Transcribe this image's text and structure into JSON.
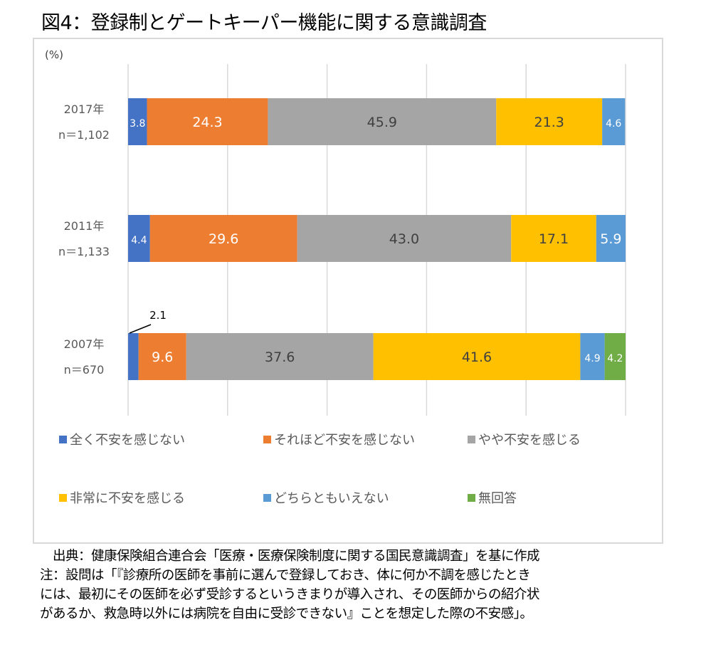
{
  "title": "図4：登録制とゲートキーパー機能に関する意識調査",
  "chart_data": {
    "type": "bar",
    "orientation": "horizontal",
    "stacked": true,
    "unit_label": "(%)",
    "xlim": [
      0,
      100
    ],
    "x_gridlines": [
      0,
      20,
      40,
      60,
      80,
      100
    ],
    "grid": true,
    "categories": [
      {
        "year": "2017年",
        "n": "n＝1,102"
      },
      {
        "year": "2011年",
        "n": "n＝1,133"
      },
      {
        "year": "2007年",
        "n": "n＝670"
      }
    ],
    "series": [
      {
        "name": "全く不安を感じない",
        "color": "#4472c4",
        "label_color": "#ffffff",
        "values": [
          3.8,
          4.4,
          2.1
        ]
      },
      {
        "name": "それほど不安を感じない",
        "color": "#ed7d31",
        "label_color": "#ffffff",
        "values": [
          24.3,
          29.6,
          9.6
        ]
      },
      {
        "name": "やや不安を感じる",
        "color": "#a5a5a5",
        "label_color": "#404040",
        "values": [
          45.9,
          43.0,
          37.6
        ]
      },
      {
        "name": "非常に不安を感じる",
        "color": "#ffc000",
        "label_color": "#404040",
        "values": [
          21.3,
          17.1,
          41.6
        ]
      },
      {
        "name": "どちらともいえない",
        "color": "#5b9bd5",
        "label_color": "#ffffff",
        "values": [
          4.6,
          5.9,
          4.9
        ]
      },
      {
        "name": "無回答",
        "color": "#70ad47",
        "label_color": "#ffffff",
        "values": [
          null,
          null,
          4.2
        ]
      }
    ],
    "data_labels": [
      [
        "3.8",
        "24.3",
        "45.9",
        "21.3",
        "4.6",
        null
      ],
      [
        "4.4",
        "29.6",
        "43.0",
        "17.1",
        "5.9",
        null
      ],
      [
        "2.1",
        "9.6",
        "37.6",
        "41.6",
        "4.9",
        "4.2"
      ]
    ],
    "callout_labels": [
      {
        "category_index": 2,
        "series_index": 0,
        "text": "2.1"
      }
    ],
    "legend_position": "bottom"
  },
  "notes": {
    "source": "　出典：健康保険組合連合会「医療・医療保険制度に関する国民意識調査」を基に作成",
    "note_lines": [
      "注：設問は「『診療所の医師を事前に選んで登録しておき、体に何か不調を感じたとき",
      "には、最初にその医師を必ず受診するというきまりが導入され、その医師からの紹介状",
      "があるか、救急時以外には病院を自由に受診できない』ことを想定した際の不安感」。"
    ]
  }
}
